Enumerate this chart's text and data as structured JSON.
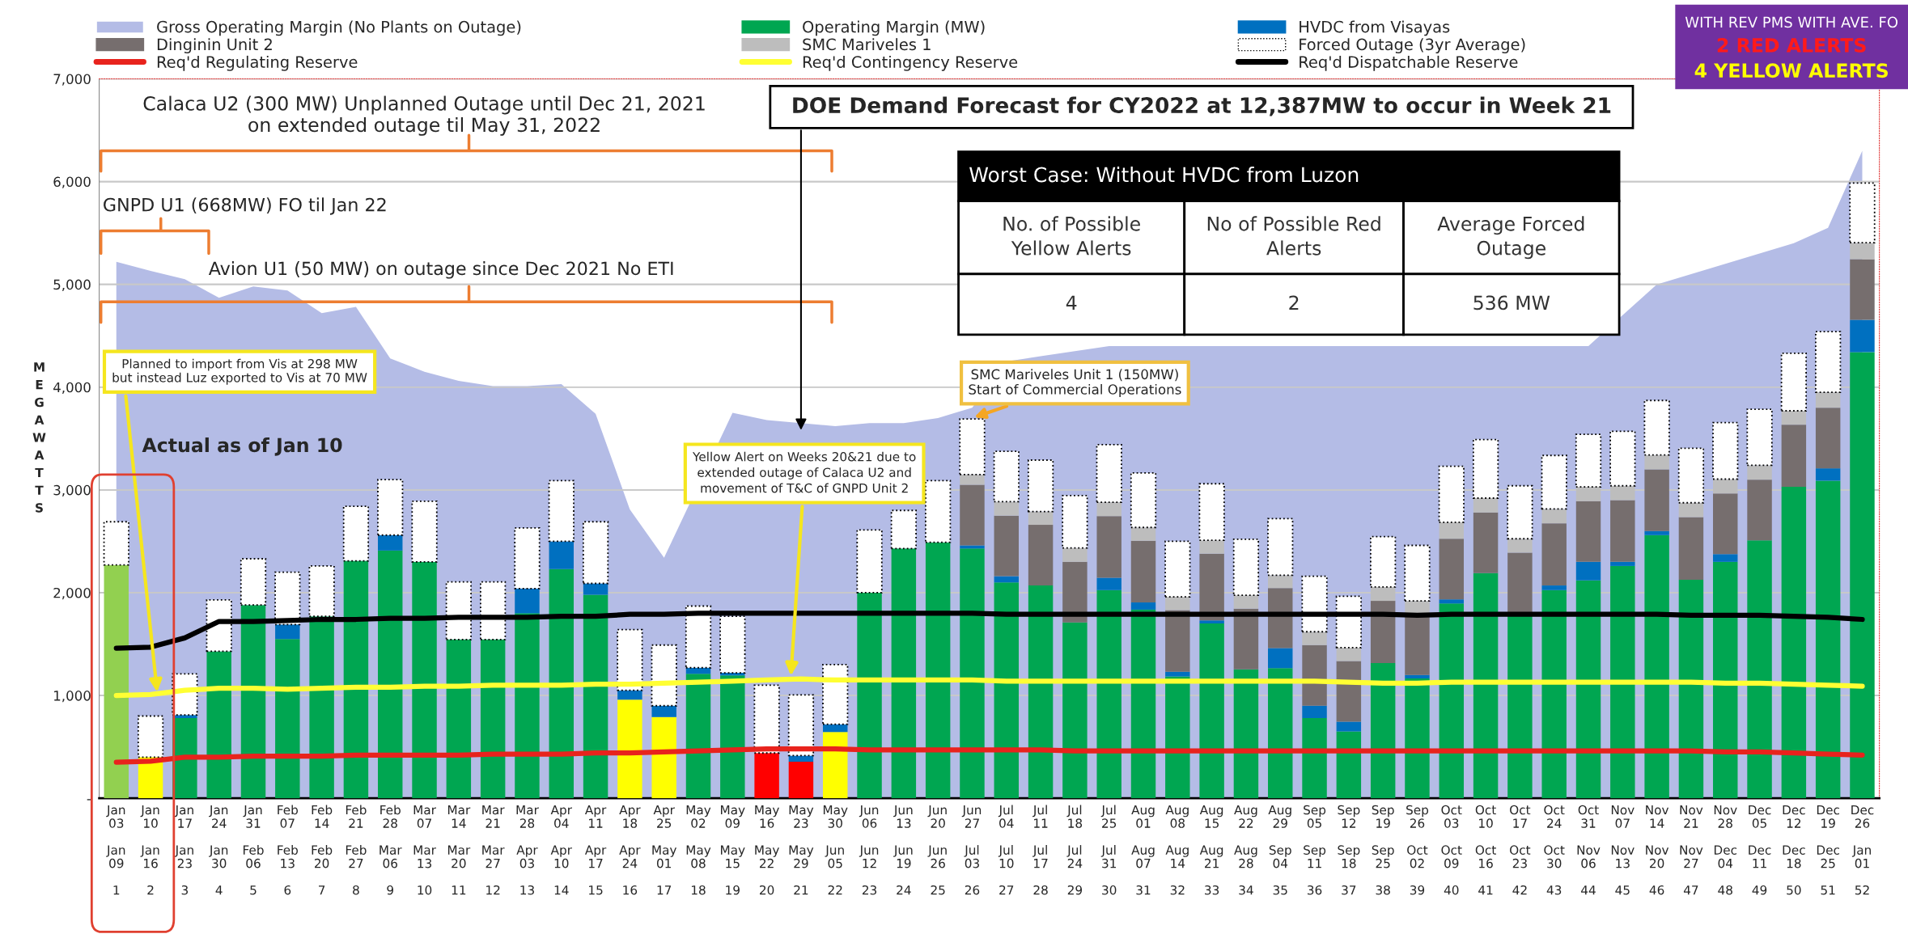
{
  "chart_data": [
    {
      "type": "area",
      "grid": "y",
      "tick_labels": false,
      "ylim": [
        0,
        7000
      ],
      "yticks": [
        0,
        1000,
        2000,
        3000,
        4000,
        5000,
        6000,
        7000
      ],
      "categories": [
        null,
        null,
        null,
        null,
        null,
        null,
        null,
        null,
        null,
        null,
        null,
        null,
        null,
        null,
        null,
        null,
        null,
        null,
        null,
        null,
        null,
        null,
        null,
        null,
        null,
        null,
        null,
        null,
        null,
        null,
        null,
        null,
        null,
        null,
        null,
        null,
        null,
        null,
        null,
        null,
        null,
        null,
        null,
        null,
        null,
        null,
        null,
        null,
        null,
        null,
        null,
        null
      ],
      "series": [
        {
          "name": "Gross Operating Margin (No Plants on Outage)",
          "color": "#b4bce6",
          "values": [
            5220,
            5130,
            5050,
            4870,
            4980,
            4940,
            4720,
            4780,
            4280,
            4150,
            4060,
            4010,
            4010,
            4030,
            3740,
            2810,
            2340,
            null,
            3750,
            3680,
            3650,
            3620,
            3650,
            3650,
            3700,
            3800,
            4250,
            4300,
            4350,
            4400,
            4400,
            4400,
            4400,
            4400,
            4400,
            4400,
            4400,
            4400,
            4400,
            4400,
            4400,
            4400,
            4400,
            4400,
            4700,
            5000,
            5100,
            5200,
            5300,
            5400,
            5550,
            6300
          ]
        }
      ]
    },
    {
      "type": "bar",
      "stacked": true,
      "legend": "top",
      "grid": "y",
      "ylabel": "M\nE\nG\nA\nW\nA\nT\nT\nS",
      "ylim": [
        0,
        7000
      ],
      "yticks": [
        {
          "value": 0,
          "label": "-"
        },
        {
          "value": 1000,
          "label": "1,000"
        },
        {
          "value": 2000,
          "label": "2,000"
        },
        {
          "value": 3000,
          "label": "3,000"
        },
        {
          "value": 4000,
          "label": "4,000"
        },
        {
          "value": 5000,
          "label": "5,000"
        },
        {
          "value": 6000,
          "label": "6,000"
        },
        {
          "value": 7000,
          "label": "7,000"
        }
      ],
      "categories": [
        "Jan\n03\n\nJan\n09\n\n1",
        "Jan\n10\n\nJan\n16\n\n2",
        "Jan\n17\n\nJan\n23\n\n3",
        "Jan\n24\n\nJan\n30\n\n4",
        "Jan\n31\n\nFeb\n06\n\n5",
        "Feb\n07\n\nFeb\n13\n\n6",
        "Feb\n14\n\nFeb\n20\n\n7",
        "Feb\n21\n\nFeb\n27\n\n8",
        "Feb\n28\n\nMar\n06\n\n9",
        "Mar\n07\n\nMar\n13\n\n10",
        "Mar\n14\n\nMar\n20\n\n11",
        "Mar\n21\n\nMar\n27\n\n12",
        "Mar\n28\n\nApr\n03\n\n13",
        "Apr\n04\n\nApr\n10\n\n14",
        "Apr\n11\n\nApr\n17\n\n15",
        "Apr\n18\n\nApr\n24\n\n16",
        "Apr\n25\n\nMay\n01\n\n17",
        "May\n02\n\nMay\n08\n\n18",
        "May\n09\n\nMay\n15\n\n19",
        "May\n16\n\nMay\n22\n\n20",
        "May\n23\n\nMay\n29\n\n21",
        "May\n30\n\nJun\n05\n\n22",
        "Jun\n06\n\nJun\n12\n\n23",
        "Jun\n13\n\nJun\n19\n\n24",
        "Jun\n20\n\nJun\n26\n\n25",
        "Jun\n27\n\nJul\n03\n\n26",
        "Jul\n04\n\nJul\n10\n\n27",
        "Jul\n11\n\nJul\n17\n\n28",
        "Jul\n18\n\nJul\n24\n\n29",
        "Jul\n25\n\nJul\n31\n\n30",
        "Aug\n01\n\nAug\n07\n\n31",
        "Aug\n08\n\nAug\n14\n\n32",
        "Aug\n15\n\nAug\n21\n\n33",
        "Aug\n22\n\nAug\n28\n\n34",
        "Aug\n29\n\nSep\n04\n\n35",
        "Sep\n05\n\nSep\n11\n\n36",
        "Sep\n12\n\nSep\n18\n\n37",
        "Sep\n19\n\nSep\n25\n\n38",
        "Sep\n26\n\nOct\n02\n\n39",
        "Oct\n03\n\nOct\n09\n\n40",
        "Oct\n10\n\nOct\n16\n\n41",
        "Oct\n17\n\nOct\n23\n\n42",
        "Oct\n24\n\nOct\n30\n\n43",
        "Oct\n31\n\nNov\n06\n\n44",
        "Nov\n07\n\nNov\n13\n\n45",
        "Nov\n14\n\nNov\n20\n\n46",
        "Nov\n21\n\nNov\n27\n\n47",
        "Nov\n28\n\nDec\n04\n\n48",
        "Dec\n05\n\nDec\n11\n\n49",
        "Dec\n12\n\nDec\n18\n\n50",
        "Dec\n19\n\nDec\n25\n\n51",
        "Dec\n26\n\nJan\n01\n\n52"
      ],
      "series": [
        {
          "name": "Operating Margin (MW)",
          "color": "#00a651",
          "colors": [
            "#92d050",
            "#ffff00",
            "#00a651",
            "#00a651",
            "#00a651",
            "#00a651",
            "#00a651",
            "#00a651",
            "#00a651",
            "#00a651",
            "#00a651",
            "#00a651",
            "#00a651",
            "#00a651",
            "#00a651",
            "#ffff00",
            "#ffff00",
            "#00a651",
            "#00a651",
            "#ff0000",
            "#ff0000",
            "#ffff00",
            "#00a651",
            "#00a651",
            "#00a651",
            "#00a651",
            "#00a651",
            "#00a651",
            "#00a651",
            "#00a651",
            "#00a651",
            "#00a651",
            "#00a651",
            "#00a651",
            "#00a651",
            "#00a651",
            "#00a651",
            "#00a651",
            "#00a651",
            "#00a651",
            "#00a651",
            "#00a651",
            "#00a651",
            "#00a651",
            "#00a651",
            "#00a651",
            "#00a651",
            "#00a651",
            "#00a651",
            "#00a651",
            "#00a651",
            "#00a651"
          ],
          "values": [
            2270,
            400,
            780,
            1430,
            1880,
            1550,
            1770,
            2310,
            2410,
            2300,
            1545,
            1545,
            1800,
            2230,
            1980,
            960,
            790,
            1210,
            1195,
            440,
            355,
            645,
            2000,
            2430,
            2490,
            2430,
            2100,
            2070,
            1710,
            2025,
            1835,
            1185,
            1700,
            1255,
            1265,
            780,
            650,
            1315,
            1165,
            1895,
            2190,
            1790,
            2025,
            2120,
            2260,
            2560,
            2125,
            2300,
            2510,
            3030,
            3090,
            4340
          ]
        },
        {
          "name": "HVDC from Visayas",
          "color": "#0070c0",
          "values": [
            null,
            null,
            30,
            null,
            null,
            140,
            null,
            null,
            150,
            null,
            null,
            null,
            240,
            270,
            110,
            90,
            110,
            60,
            25,
            null,
            60,
            75,
            null,
            null,
            null,
            30,
            60,
            null,
            null,
            120,
            70,
            45,
            30,
            null,
            195,
            120,
            95,
            null,
            35,
            40,
            null,
            null,
            45,
            180,
            40,
            40,
            null,
            75,
            null,
            null,
            120,
            315
          ]
        },
        {
          "name": "Dinginin Unit 2",
          "color": "#766e6e",
          "values": [
            null,
            null,
            null,
            null,
            null,
            null,
            null,
            null,
            null,
            null,
            null,
            null,
            null,
            null,
            null,
            null,
            null,
            null,
            null,
            null,
            null,
            null,
            null,
            null,
            null,
            590,
            590,
            590,
            590,
            600,
            600,
            600,
            650,
            590,
            585,
            590,
            590,
            605,
            585,
            590,
            590,
            600,
            605,
            590,
            600,
            600,
            610,
            590,
            590,
            605,
            590,
            590
          ]
        },
        {
          "name": "SMC Mariveles 1",
          "color": "#bdbdbd",
          "values": [
            null,
            null,
            null,
            null,
            null,
            null,
            null,
            null,
            null,
            null,
            null,
            null,
            null,
            null,
            null,
            null,
            null,
            null,
            null,
            null,
            null,
            null,
            null,
            null,
            null,
            100,
            135,
            130,
            135,
            135,
            130,
            130,
            130,
            130,
            125,
            130,
            130,
            135,
            135,
            160,
            140,
            135,
            140,
            140,
            140,
            140,
            140,
            140,
            140,
            135,
            150,
            160
          ]
        },
        {
          "name": "Forced Outage (3yr Average)",
          "color": "#ffffff",
          "line_style": "dotted",
          "values": [
            420,
            400,
            400,
            500,
            450,
            510,
            490,
            530,
            540,
            590,
            560,
            560,
            590,
            590,
            600,
            590,
            590,
            600,
            550,
            660,
            590,
            580,
            610,
            370,
            600,
            540,
            490,
            500,
            510,
            560,
            530,
            540,
            550,
            545,
            550,
            540,
            500,
            490,
            540,
            545,
            570,
            515,
            520,
            510,
            530,
            530,
            530,
            550,
            545,
            560,
            590,
            580
          ]
        },
        {
          "name": "Req'd Regulating Reserve",
          "type": "line",
          "color": "#e8231d",
          "values": [
            350,
            360,
            400,
            400,
            410,
            410,
            410,
            420,
            420,
            420,
            420,
            430,
            430,
            430,
            440,
            440,
            450,
            460,
            470,
            480,
            480,
            480,
            470,
            470,
            470,
            470,
            470,
            470,
            460,
            460,
            460,
            460,
            460,
            460,
            460,
            460,
            460,
            460,
            460,
            460,
            460,
            460,
            460,
            460,
            460,
            460,
            460,
            450,
            450,
            440,
            430,
            420
          ]
        },
        {
          "name": "Req'd Contingency Reserve",
          "type": "line",
          "color": "#ffff33",
          "values": [
            1000,
            1010,
            1050,
            1070,
            1070,
            1060,
            1070,
            1080,
            1080,
            1090,
            1090,
            1100,
            1100,
            1100,
            1110,
            1110,
            1120,
            1130,
            1140,
            1150,
            1160,
            1150,
            1150,
            1150,
            1150,
            1150,
            1140,
            1140,
            1140,
            1140,
            1140,
            1140,
            1140,
            1140,
            1140,
            1140,
            1130,
            1120,
            1120,
            1130,
            1130,
            1130,
            1130,
            1130,
            1130,
            1130,
            1130,
            1120,
            1120,
            1110,
            1100,
            1090
          ]
        },
        {
          "name": "Req'd Dispatchable Reserve",
          "type": "line",
          "color": "#000000",
          "values": [
            1460,
            1470,
            1560,
            1720,
            1720,
            1730,
            1740,
            1740,
            1750,
            1750,
            1760,
            1760,
            1760,
            1770,
            1770,
            1790,
            1790,
            1800,
            1800,
            1800,
            1800,
            1800,
            1800,
            1800,
            1800,
            1800,
            1790,
            1790,
            1790,
            1790,
            1790,
            1790,
            1790,
            1790,
            1790,
            1790,
            1790,
            1790,
            1780,
            1790,
            1790,
            1790,
            1790,
            1790,
            1790,
            1790,
            1780,
            1780,
            1780,
            1770,
            1760,
            1740
          ]
        }
      ],
      "annotations": [
        "Calaca U2 (300 MW) Unplanned Outage until Dec 21, 2021\non extended outage til May 31, 2022",
        "GNPD U1 (668MW) FO til Jan 22",
        "Avion U1 (50 MW) on outage since Dec 2021 No ETI",
        "Planned to import from Vis at 298 MW\nbut instead Luz exported to Vis at 70 MW",
        "Actual as of Jan 10",
        "Yellow Alert on Weeks 20&21 due to\nextended outage of Calaca U2 and\nmovement of T&C of GNPD Unit 2",
        "SMC Mariveles Unit 1 (150MW)\nStart of Commercial Operations",
        "DOE Demand Forecast for CY2022 at 12,387MW to occur in Week 21",
        "Worst Case: Without HVDC from Luzon",
        "No. of Possible\nYellow Alerts",
        "No of Possible Red\nAlerts",
        "Average Forced\nOutage",
        "4",
        "2",
        "536 MW",
        "WITH REV PMS WITH AVE. FO",
        "2 RED ALERTS",
        "4 YELLOW ALERTS"
      ]
    }
  ]
}
